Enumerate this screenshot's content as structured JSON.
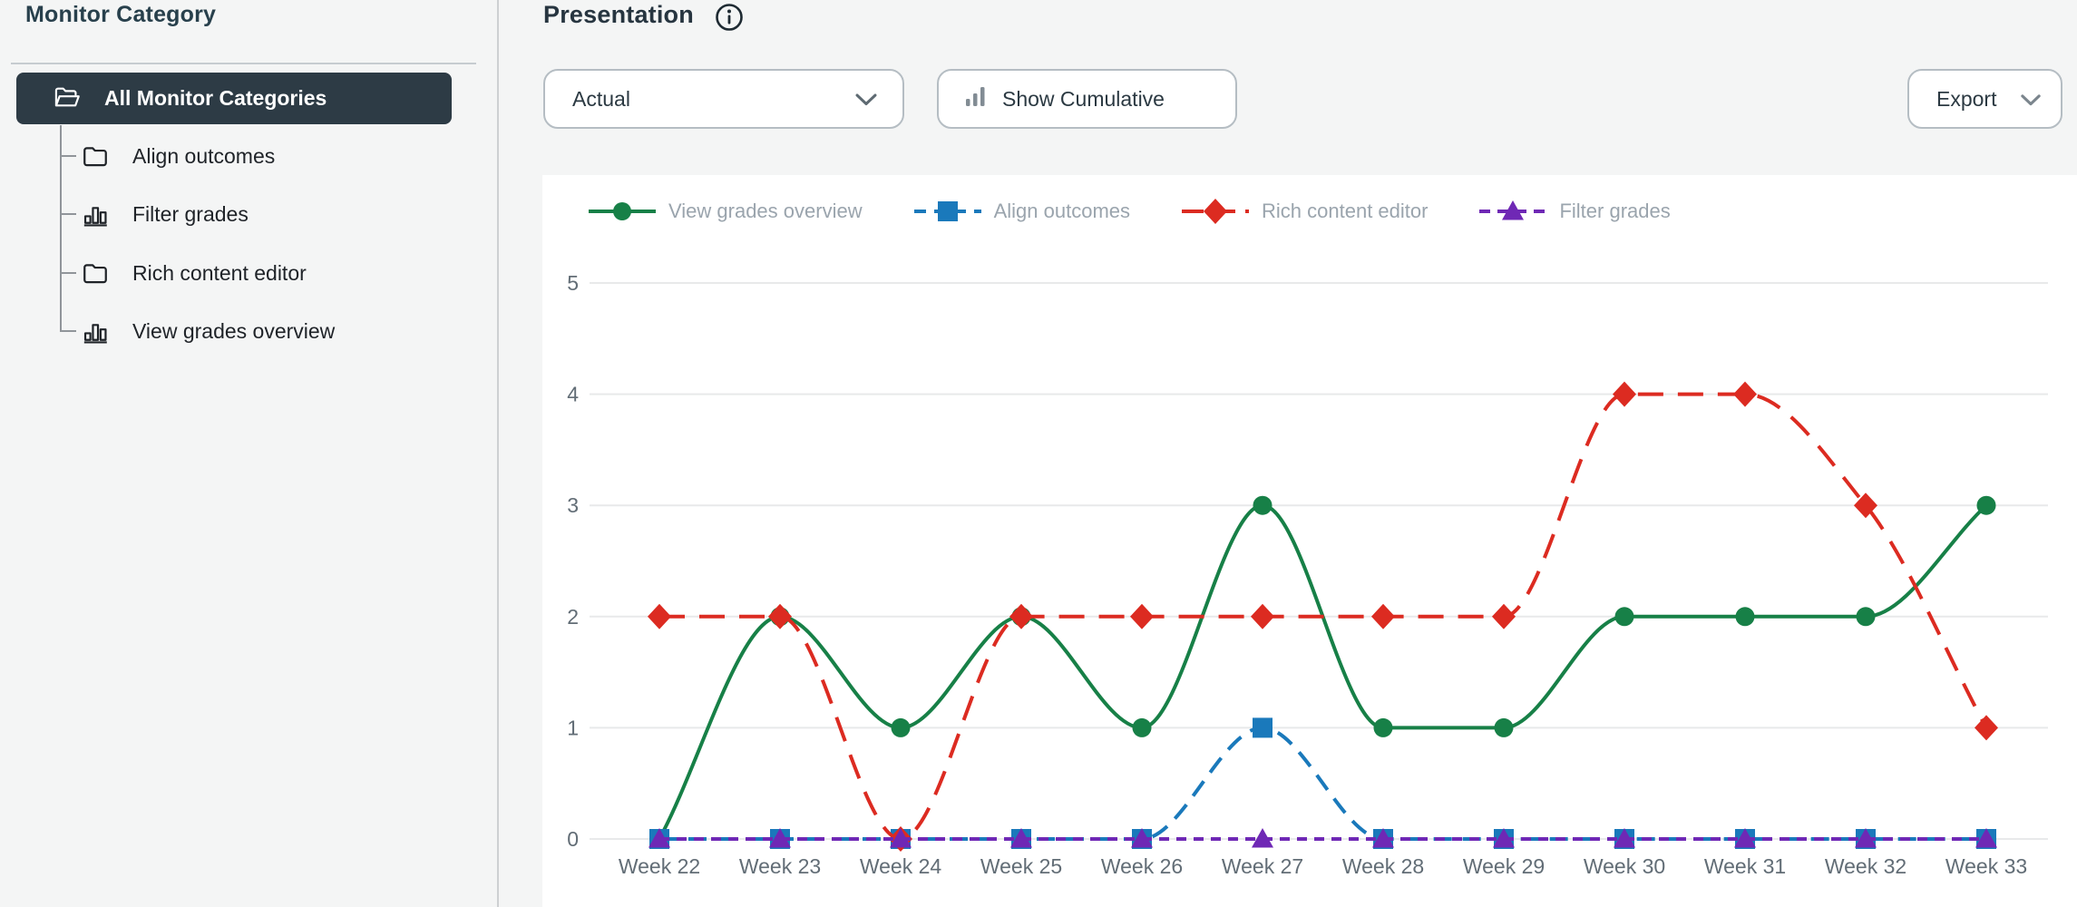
{
  "sidebar": {
    "title": "Monitor Category",
    "items": [
      {
        "label": "All Monitor Categories",
        "icon": "folder-open",
        "selected": true
      },
      {
        "label": "Align outcomes",
        "icon": "folder",
        "selected": false
      },
      {
        "label": "Filter grades",
        "icon": "bar-chart",
        "selected": false
      },
      {
        "label": "Rich content editor",
        "icon": "folder",
        "selected": false
      },
      {
        "label": "View grades overview",
        "icon": "bar-chart",
        "selected": false
      }
    ]
  },
  "header": {
    "title": "Presentation",
    "info_icon": "info-icon"
  },
  "toolbar": {
    "metric_select": {
      "value": "Actual",
      "icon": "chevron-down-icon"
    },
    "cumulative_button": {
      "label": "Show Cumulative",
      "icon": "bar-chart-icon"
    },
    "export_button": {
      "label": "Export",
      "icon": "chevron-down-icon"
    }
  },
  "colors": {
    "page_bg": "#f4f5f5",
    "card_bg": "#ffffff",
    "dark_slate": "#2d3b45",
    "axis_text": "#626d76",
    "legend_text": "#9aa4ad",
    "gridline": "#e8e9ea",
    "green": "#178047",
    "blue": "#1a79bb",
    "red": "#dc2b21",
    "purple": "#6f28b5"
  },
  "chart_data": {
    "type": "line",
    "x": [
      "Week 22",
      "Week 23",
      "Week 24",
      "Week 25",
      "Week 26",
      "Week 27",
      "Week 28",
      "Week 29",
      "Week 30",
      "Week 31",
      "Week 32",
      "Week 33"
    ],
    "y_ticks": [
      0,
      1,
      2,
      3,
      4,
      5
    ],
    "ylim": [
      0,
      5
    ],
    "grid": true,
    "legend_position": "top",
    "series": [
      {
        "name": "View grades overview",
        "color": "#178047",
        "marker": "circle",
        "dash": "solid",
        "values": [
          0,
          2,
          1,
          2,
          1,
          3,
          1,
          1,
          2,
          2,
          2,
          3
        ]
      },
      {
        "name": "Align outcomes",
        "color": "#1a79bb",
        "marker": "square",
        "dash": "dashed",
        "values": [
          0,
          0,
          0,
          0,
          0,
          1,
          0,
          0,
          0,
          0,
          0,
          0
        ]
      },
      {
        "name": "Rich content editor",
        "color": "#dc2b21",
        "marker": "diamond",
        "dash": "long-dash",
        "values": [
          2,
          2,
          0,
          2,
          2,
          2,
          2,
          2,
          4,
          4,
          3,
          1
        ]
      },
      {
        "name": "Filter grades",
        "color": "#6f28b5",
        "marker": "triangle",
        "dash": "short-dash",
        "values": [
          0,
          0,
          0,
          0,
          0,
          0,
          0,
          0,
          0,
          0,
          0,
          0
        ]
      }
    ]
  }
}
